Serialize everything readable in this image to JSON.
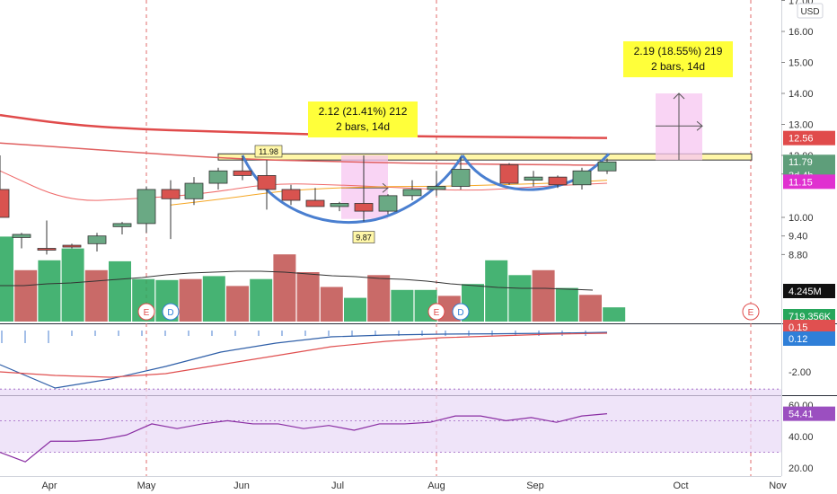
{
  "currency_label": "USD",
  "chart_data": {
    "type": "candlestick",
    "x_axis": {
      "labels": [
        "Apr",
        "May",
        "Jun",
        "Jul",
        "Aug",
        "Sep",
        "Oct",
        "Nov"
      ]
    },
    "price_axis": {
      "ticks": [
        "17.00",
        "16.00",
        "15.00",
        "14.00",
        "13.00",
        "12.00",
        "11.40",
        "10.00",
        "9.40",
        "8.80"
      ],
      "range": [
        8.5,
        17
      ]
    },
    "candles": [
      {
        "o": 9.7,
        "h": 9.85,
        "l": 9.45,
        "c": 9.8
      },
      {
        "o": 9.8,
        "h": 11.0,
        "l": 9.5,
        "c": 10.9
      },
      {
        "o": 10.9,
        "h": 11.2,
        "l": 9.3,
        "c": 10.6
      },
      {
        "o": 10.6,
        "h": 11.3,
        "l": 10.4,
        "c": 11.1
      },
      {
        "o": 11.1,
        "h": 11.6,
        "l": 10.9,
        "c": 11.5
      },
      {
        "o": 11.5,
        "h": 11.98,
        "l": 11.2,
        "c": 11.35
      },
      {
        "o": 11.35,
        "h": 11.85,
        "l": 10.25,
        "c": 10.9
      },
      {
        "o": 10.9,
        "h": 11.05,
        "l": 10.4,
        "c": 10.55
      },
      {
        "o": 10.55,
        "h": 10.95,
        "l": 10.35,
        "c": 10.35
      },
      {
        "o": 10.35,
        "h": 10.5,
        "l": 10.2,
        "c": 10.45
      },
      {
        "o": 10.45,
        "h": 12.0,
        "l": 9.87,
        "c": 10.2
      },
      {
        "o": 10.2,
        "h": 10.75,
        "l": 10.1,
        "c": 10.7
      },
      {
        "o": 10.7,
        "h": 11.2,
        "l": 10.55,
        "c": 10.9
      },
      {
        "o": 10.9,
        "h": 11.5,
        "l": 10.7,
        "c": 11.0
      },
      {
        "o": 11.0,
        "h": 11.95,
        "l": 10.9,
        "c": 11.55
      },
      {
        "o": 11.7,
        "h": 11.75,
        "l": 11.05,
        "c": 11.1
      },
      {
        "o": 11.2,
        "h": 11.5,
        "l": 11.0,
        "c": 11.3
      },
      {
        "o": 11.3,
        "h": 11.35,
        "l": 10.95,
        "c": 11.05
      },
      {
        "o": 11.05,
        "h": 11.6,
        "l": 10.9,
        "c": 11.5
      },
      {
        "o": 11.5,
        "h": 11.9,
        "l": 11.4,
        "c": 11.79
      }
    ],
    "overlays": {
      "ema_long": [
        13.3,
        13.0,
        12.85,
        12.78,
        12.72,
        12.66,
        12.62,
        12.6,
        12.58,
        12.56
      ],
      "ema_mid": [
        12.4,
        12.25,
        12.1,
        11.95,
        11.85,
        11.8,
        11.75,
        11.72,
        11.7,
        11.68
      ],
      "ema_short": [
        11.5,
        10.5,
        10.6,
        10.75,
        11.1,
        11.05,
        10.95,
        10.85,
        11.0,
        11.1
      ],
      "ma_orange": [
        10.4,
        10.6,
        10.85,
        10.95,
        11.0,
        11.0,
        11.05,
        11.1,
        11.2
      ]
    },
    "resistance_band": [
      11.85,
      12.05
    ],
    "price_labels": {
      "last": "11.79",
      "ema": "12.56",
      "ma": "11.15",
      "timer": "3d 4h"
    },
    "annotations": [
      {
        "text": "11.98",
        "type": "high-label"
      },
      {
        "text": "9.87",
        "type": "low-label"
      }
    ],
    "measure_boxes": [
      {
        "line1": "2.12 (21.41%) 212",
        "line2": "2 bars, 14d"
      },
      {
        "line1": "2.19 (18.55%) 219",
        "line2": "2 bars, 14d"
      }
    ],
    "events": [
      "E",
      "D",
      "E",
      "D",
      "E"
    ],
    "volume": {
      "values": [
        4.3,
        2.6,
        3.1,
        3.7,
        2.6,
        3.05,
        2.15,
        2.1,
        2.15,
        2.3,
        1.8,
        2.15,
        3.4,
        2.5,
        1.75,
        1.2,
        2.35,
        1.6,
        1.6,
        1.3,
        1.9,
        3.1,
        2.35,
        2.6,
        1.7,
        1.35,
        0.719
      ],
      "up": [
        true,
        false,
        true,
        true,
        false,
        true,
        true,
        true,
        false,
        true,
        false,
        true,
        false,
        false,
        false,
        true,
        false,
        true,
        true,
        false,
        true,
        true,
        true,
        false,
        true,
        false,
        true
      ],
      "avg_label": "4.245M",
      "last_label": "719.356K"
    },
    "macd": {
      "ticks": [
        "-2.00"
      ],
      "range": [
        -3.2,
        0.6
      ],
      "macd_line": [
        -1.6,
        -2.9,
        -2.4,
        -1.7,
        -0.9,
        -0.4,
        -0.05,
        0.05,
        0.1,
        0.12,
        0.15,
        0.2
      ],
      "signal_line": [
        -2.0,
        -2.2,
        -2.3,
        -2.1,
        -1.6,
        -1.1,
        -0.6,
        -0.3,
        -0.1,
        0.0,
        0.1,
        0.15
      ],
      "labels": [
        "0.15",
        "0.12"
      ]
    },
    "rsi": {
      "ticks": [
        "60.00",
        "40.00",
        "20.00"
      ],
      "range": [
        15,
        65
      ],
      "values": [
        30,
        24,
        37,
        37,
        38,
        41,
        48,
        45,
        48,
        50,
        48,
        48,
        45,
        47,
        44,
        48,
        48,
        49,
        53,
        53,
        50,
        52,
        49,
        53,
        54.41
      ],
      "label": "54.41"
    }
  }
}
